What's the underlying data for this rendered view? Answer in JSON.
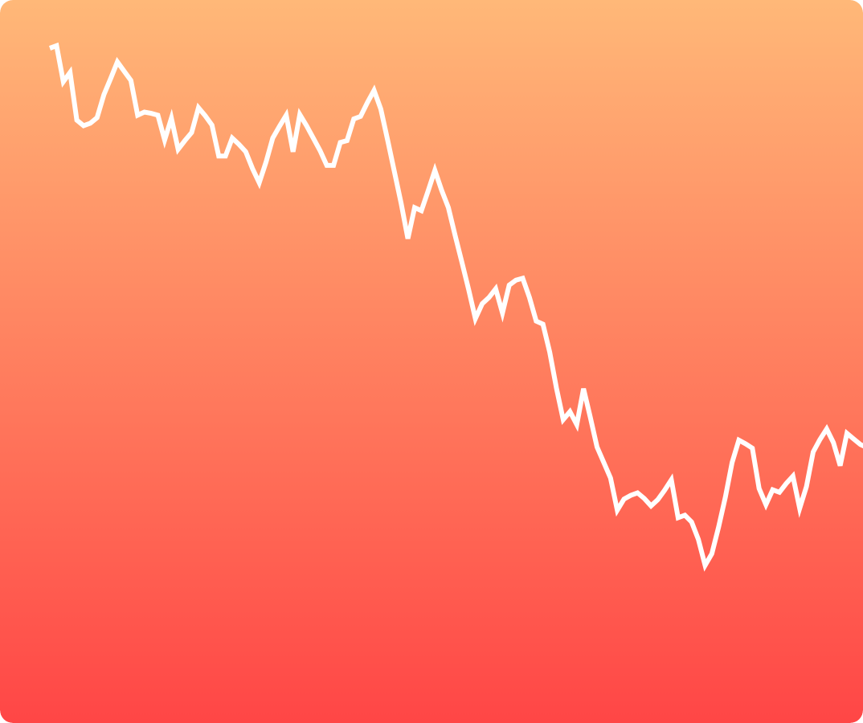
{
  "colors": {
    "gradient_top": "#ffb878",
    "gradient_bottom": "#ff4646",
    "line": "#ffffff"
  },
  "chart_data": {
    "type": "line",
    "title": "",
    "xlabel": "",
    "ylabel": "",
    "grid": false,
    "legend": "none",
    "xlim": [
      1,
      114
    ],
    "ylim": [
      0,
      100
    ],
    "series": [
      {
        "values": [
          100,
          100.4,
          94.6,
          96.1,
          88.4,
          87.5,
          87.9,
          88.8,
          92.5,
          95.1,
          97.8,
          96.3,
          94.8,
          89.2,
          89.7,
          89.5,
          89.2,
          85.2,
          88.7,
          83.7,
          85.1,
          86.4,
          90.4,
          89.1,
          87.6,
          82.6,
          82.6,
          85.5,
          84.5,
          83.3,
          80.6,
          78.3,
          81.6,
          85.5,
          87.4,
          89.2,
          83.3,
          89.3,
          87.5,
          85.5,
          83.5,
          81.1,
          81.1,
          84.8,
          85.1,
          88.6,
          89.0,
          91.2,
          93.2,
          90.2,
          85.2,
          80.1,
          75.0,
          69.3,
          74.3,
          73.8,
          77.0,
          80.3,
          77.1,
          74.3,
          69.8,
          65.5,
          61.1,
          56.4,
          58.8,
          59.8,
          61.2,
          57.3,
          61.8,
          62.6,
          62.9,
          59.8,
          56.0,
          55.5,
          51.0,
          45.2,
          40.1,
          41.4,
          39.3,
          45.1,
          40.5,
          35.7,
          33.2,
          30.7,
          25.5,
          27.3,
          27.9,
          28.3,
          27.4,
          26.2,
          27.2,
          28.7,
          30.4,
          24.3,
          24.7,
          23.6,
          20.8,
          16.6,
          18.5,
          22.8,
          27.6,
          33.2,
          36.8,
          36.2,
          35.5,
          29.0,
          26.4,
          28.8,
          28.4,
          29.8,
          31.0,
          25.8,
          29.3,
          34.9,
          36.9,
          38.6,
          36.4,
          32.7,
          37.9,
          37.0,
          36.1,
          35.6,
          36.7,
          36.4
        ]
      }
    ]
  }
}
